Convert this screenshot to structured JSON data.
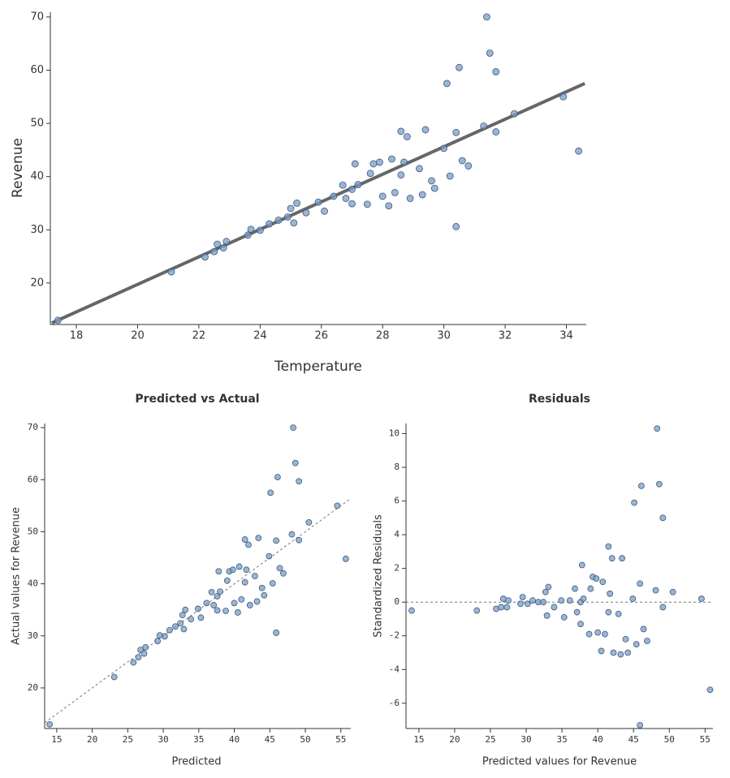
{
  "chart_data": [
    {
      "type": "scatter",
      "x_label": "Temperature",
      "y_label": "Revenue",
      "x": [
        17.4,
        21.1,
        22.2,
        22.5,
        22.6,
        22.9,
        22.8,
        23.6,
        23.7,
        24.0,
        24.3,
        24.6,
        24.9,
        25.0,
        25.2,
        25.1,
        25.5,
        25.9,
        26.1,
        26.4,
        26.7,
        26.8,
        27.0,
        27.0,
        27.1,
        27.2,
        27.5,
        27.6,
        27.7,
        27.9,
        28.0,
        28.2,
        28.3,
        28.4,
        28.6,
        28.6,
        28.7,
        28.8,
        28.9,
        29.2,
        29.3,
        29.4,
        29.6,
        29.7,
        30.0,
        30.1,
        30.2,
        30.4,
        30.4,
        30.5,
        30.6,
        30.8,
        31.3,
        31.4,
        31.5,
        31.7,
        31.7,
        32.3,
        33.9,
        34.4
      ],
      "y": [
        13.0,
        22.1,
        24.9,
        25.9,
        27.3,
        27.8,
        26.6,
        29.0,
        30.1,
        29.9,
        31.1,
        31.8,
        32.4,
        34.0,
        35.0,
        31.3,
        33.2,
        35.2,
        33.5,
        36.3,
        38.4,
        35.9,
        37.6,
        34.9,
        42.4,
        38.5,
        34.8,
        40.6,
        42.4,
        42.7,
        36.3,
        34.5,
        43.3,
        37.0,
        48.5,
        40.3,
        42.7,
        47.5,
        35.9,
        41.5,
        36.6,
        48.8,
        39.2,
        37.8,
        45.3,
        57.5,
        40.1,
        30.6,
        48.3,
        60.5,
        43.0,
        42.0,
        49.5,
        70.0,
        63.2,
        59.7,
        48.4,
        51.8,
        55.0,
        44.8
      ],
      "xlim": [
        17.15,
        34.65
      ],
      "ylim": [
        12.2,
        70.9
      ],
      "xticks": [
        18,
        20,
        22,
        24,
        26,
        28,
        30,
        32,
        34
      ],
      "yticks": [
        20,
        30,
        40,
        50,
        60,
        70
      ],
      "color": "#7b9cc4",
      "line": {
        "x": [
          17.2,
          34.6
        ],
        "y": [
          12.5,
          57.5
        ],
        "color": "#555555",
        "style": "solid"
      }
    },
    {
      "type": "scatter",
      "title": "Predicted vs Actual",
      "x_label": "Predicted",
      "y_label": "Actual values for Revenue",
      "x": [
        14.0,
        23.1,
        25.8,
        26.5,
        26.8,
        27.5,
        27.3,
        29.2,
        29.5,
        30.2,
        30.9,
        31.7,
        32.4,
        32.7,
        33.1,
        32.9,
        33.9,
        34.9,
        35.3,
        36.1,
        36.8,
        37.1,
        37.6,
        37.6,
        37.8,
        38.0,
        38.8,
        39.0,
        39.3,
        39.8,
        40.0,
        40.5,
        40.7,
        41.0,
        41.5,
        41.5,
        41.7,
        42.0,
        42.2,
        42.9,
        43.2,
        43.4,
        43.9,
        44.2,
        44.9,
        45.1,
        45.4,
        45.9,
        45.9,
        46.1,
        46.4,
        46.9,
        48.1,
        48.3,
        48.6,
        49.1,
        49.1,
        50.5,
        54.5,
        55.7
      ],
      "y": [
        13.0,
        22.1,
        24.9,
        25.9,
        27.3,
        27.8,
        26.6,
        29.0,
        30.1,
        29.9,
        31.1,
        31.8,
        32.4,
        34.0,
        35.0,
        31.3,
        33.2,
        35.2,
        33.5,
        36.3,
        38.4,
        35.9,
        37.6,
        34.9,
        42.4,
        38.5,
        34.8,
        40.6,
        42.4,
        42.7,
        36.3,
        34.5,
        43.3,
        37.0,
        48.5,
        40.3,
        42.7,
        47.5,
        35.9,
        41.5,
        36.6,
        48.8,
        39.2,
        37.8,
        45.3,
        57.5,
        40.1,
        30.6,
        48.3,
        60.5,
        43.0,
        42.0,
        49.5,
        70.0,
        63.2,
        59.7,
        48.4,
        51.8,
        55.0,
        44.8
      ],
      "xlim": [
        13.3,
        56.4
      ],
      "ylim": [
        12.2,
        70.8
      ],
      "xticks": [
        15,
        20,
        25,
        30,
        35,
        40,
        45,
        50,
        55
      ],
      "yticks": [
        20,
        30,
        40,
        50,
        60,
        70
      ],
      "color": "#7b9cc4",
      "line": {
        "x": [
          13.3,
          56.4
        ],
        "y": [
          13.3,
          56.4
        ],
        "color": "#777777",
        "style": "dashed"
      }
    },
    {
      "type": "scatter",
      "title": "Residuals",
      "x_label": "Predicted values for Revenue",
      "y_label": "Standardized Residuals",
      "x": [
        14.0,
        23.1,
        25.8,
        26.5,
        26.8,
        27.5,
        27.3,
        29.2,
        29.5,
        30.2,
        30.9,
        31.7,
        32.4,
        32.7,
        33.1,
        32.9,
        33.9,
        34.9,
        35.3,
        36.1,
        36.8,
        37.1,
        37.6,
        37.6,
        37.8,
        38.0,
        38.8,
        39.0,
        39.3,
        39.8,
        40.0,
        40.5,
        40.7,
        41.0,
        41.5,
        41.5,
        41.7,
        42.0,
        42.2,
        42.9,
        43.2,
        43.4,
        43.9,
        44.2,
        44.9,
        45.1,
        45.4,
        45.9,
        45.9,
        46.1,
        46.4,
        46.9,
        48.1,
        48.3,
        48.6,
        49.1,
        49.1,
        50.5,
        54.5,
        55.7
      ],
      "y": [
        -0.5,
        -0.5,
        -0.4,
        -0.3,
        0.2,
        0.1,
        -0.3,
        -0.1,
        0.3,
        -0.1,
        0.1,
        0.0,
        0.0,
        0.6,
        0.9,
        -0.8,
        -0.3,
        0.1,
        -0.9,
        0.1,
        0.8,
        -0.6,
        0.0,
        -1.3,
        2.2,
        0.2,
        -1.9,
        0.8,
        1.5,
        1.4,
        -1.8,
        -2.9,
        1.2,
        -1.9,
        3.3,
        -0.6,
        0.5,
        2.6,
        -3.0,
        -0.7,
        -3.1,
        2.6,
        -2.2,
        -3.0,
        0.2,
        5.9,
        -2.5,
        -7.3,
        1.1,
        6.9,
        -1.6,
        -2.3,
        0.7,
        10.3,
        7.0,
        5.0,
        -0.3,
        0.6,
        0.2,
        -5.2
      ],
      "xlim": [
        13.2,
        56.1
      ],
      "ylim": [
        -7.5,
        10.6
      ],
      "xticks": [
        15,
        20,
        25,
        30,
        35,
        40,
        45,
        50,
        55
      ],
      "yticks": [
        -6,
        -4,
        -2,
        0,
        2,
        4,
        6,
        8,
        10
      ],
      "color": "#7b9cc4",
      "line": {
        "x": [
          13.2,
          56.1
        ],
        "y": [
          0,
          0
        ],
        "color": "#777777",
        "style": "dashed"
      }
    }
  ]
}
